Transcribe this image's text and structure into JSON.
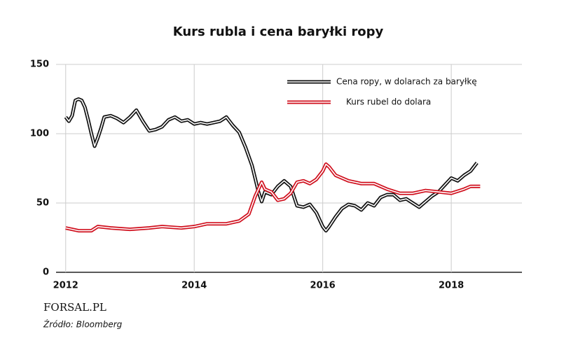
{
  "chart_data": {
    "type": "line",
    "title": "Kurs rubla i cena baryłki ropy",
    "xlim": [
      2011.85,
      2019.1
    ],
    "xticks": [
      2012,
      2014,
      2016,
      2018
    ],
    "ylim": [
      0,
      150
    ],
    "yticks": [
      0,
      50,
      100,
      150
    ],
    "grid": true,
    "legend": "top-right",
    "series": [
      {
        "name": "Cena ropy, w dolarach za baryłkę",
        "color": "#111111",
        "x": [
          2012.0,
          2012.05,
          2012.1,
          2012.15,
          2012.2,
          2012.25,
          2012.3,
          2012.35,
          2012.4,
          2012.45,
          2012.5,
          2012.55,
          2012.6,
          2012.7,
          2012.8,
          2012.9,
          2013.0,
          2013.1,
          2013.2,
          2013.3,
          2013.4,
          2013.5,
          2013.6,
          2013.7,
          2013.8,
          2013.9,
          2014.0,
          2014.1,
          2014.2,
          2014.3,
          2014.4,
          2014.5,
          2014.6,
          2014.7,
          2014.8,
          2014.9,
          2015.0,
          2015.05,
          2015.1,
          2015.2,
          2015.3,
          2015.4,
          2015.5,
          2015.6,
          2015.7,
          2015.8,
          2015.9,
          2016.0,
          2016.05,
          2016.1,
          2016.2,
          2016.3,
          2016.4,
          2016.5,
          2016.6,
          2016.7,
          2016.8,
          2016.9,
          2017.0,
          2017.1,
          2017.2,
          2017.3,
          2017.4,
          2017.5,
          2017.6,
          2017.7,
          2017.8,
          2017.9,
          2018.0,
          2018.1,
          2018.2,
          2018.3,
          2018.4
        ],
        "values": [
          112,
          109,
          113,
          124,
          125,
          124,
          119,
          110,
          100,
          91,
          97,
          104,
          112,
          113,
          111,
          108,
          112,
          117,
          109,
          102,
          103,
          105,
          110,
          112,
          109,
          110,
          107,
          108,
          107,
          108,
          109,
          112,
          106,
          101,
          90,
          77,
          58,
          51,
          58,
          56,
          62,
          66,
          62,
          48,
          47,
          49,
          43,
          33,
          30,
          33,
          40,
          46,
          49,
          48,
          45,
          50,
          48,
          54,
          56,
          56,
          52,
          53,
          50,
          47,
          51,
          55,
          58,
          63,
          68,
          66,
          70,
          73,
          79
        ]
      },
      {
        "name": "Kurs rubel do dolara",
        "color": "#d0101e",
        "x": [
          2012.0,
          2012.2,
          2012.4,
          2012.5,
          2012.7,
          2013.0,
          2013.3,
          2013.5,
          2013.8,
          2014.0,
          2014.2,
          2014.5,
          2014.7,
          2014.85,
          2014.95,
          2015.05,
          2015.1,
          2015.2,
          2015.3,
          2015.4,
          2015.5,
          2015.6,
          2015.7,
          2015.8,
          2015.9,
          2016.0,
          2016.05,
          2016.1,
          2016.2,
          2016.4,
          2016.6,
          2016.8,
          2017.0,
          2017.2,
          2017.4,
          2017.6,
          2017.8,
          2018.0,
          2018.2,
          2018.3,
          2018.45
        ],
        "values": [
          32,
          30,
          30,
          33,
          32,
          31,
          32,
          33,
          32,
          33,
          35,
          35,
          37,
          42,
          55,
          65,
          60,
          58,
          52,
          53,
          57,
          65,
          66,
          64,
          67,
          73,
          78,
          76,
          70,
          66,
          64,
          64,
          60,
          57,
          57,
          59,
          58,
          57,
          60,
          62,
          62
        ]
      }
    ],
    "logo": "FORSAL.PL",
    "source": "Źródło: Bloomberg"
  }
}
